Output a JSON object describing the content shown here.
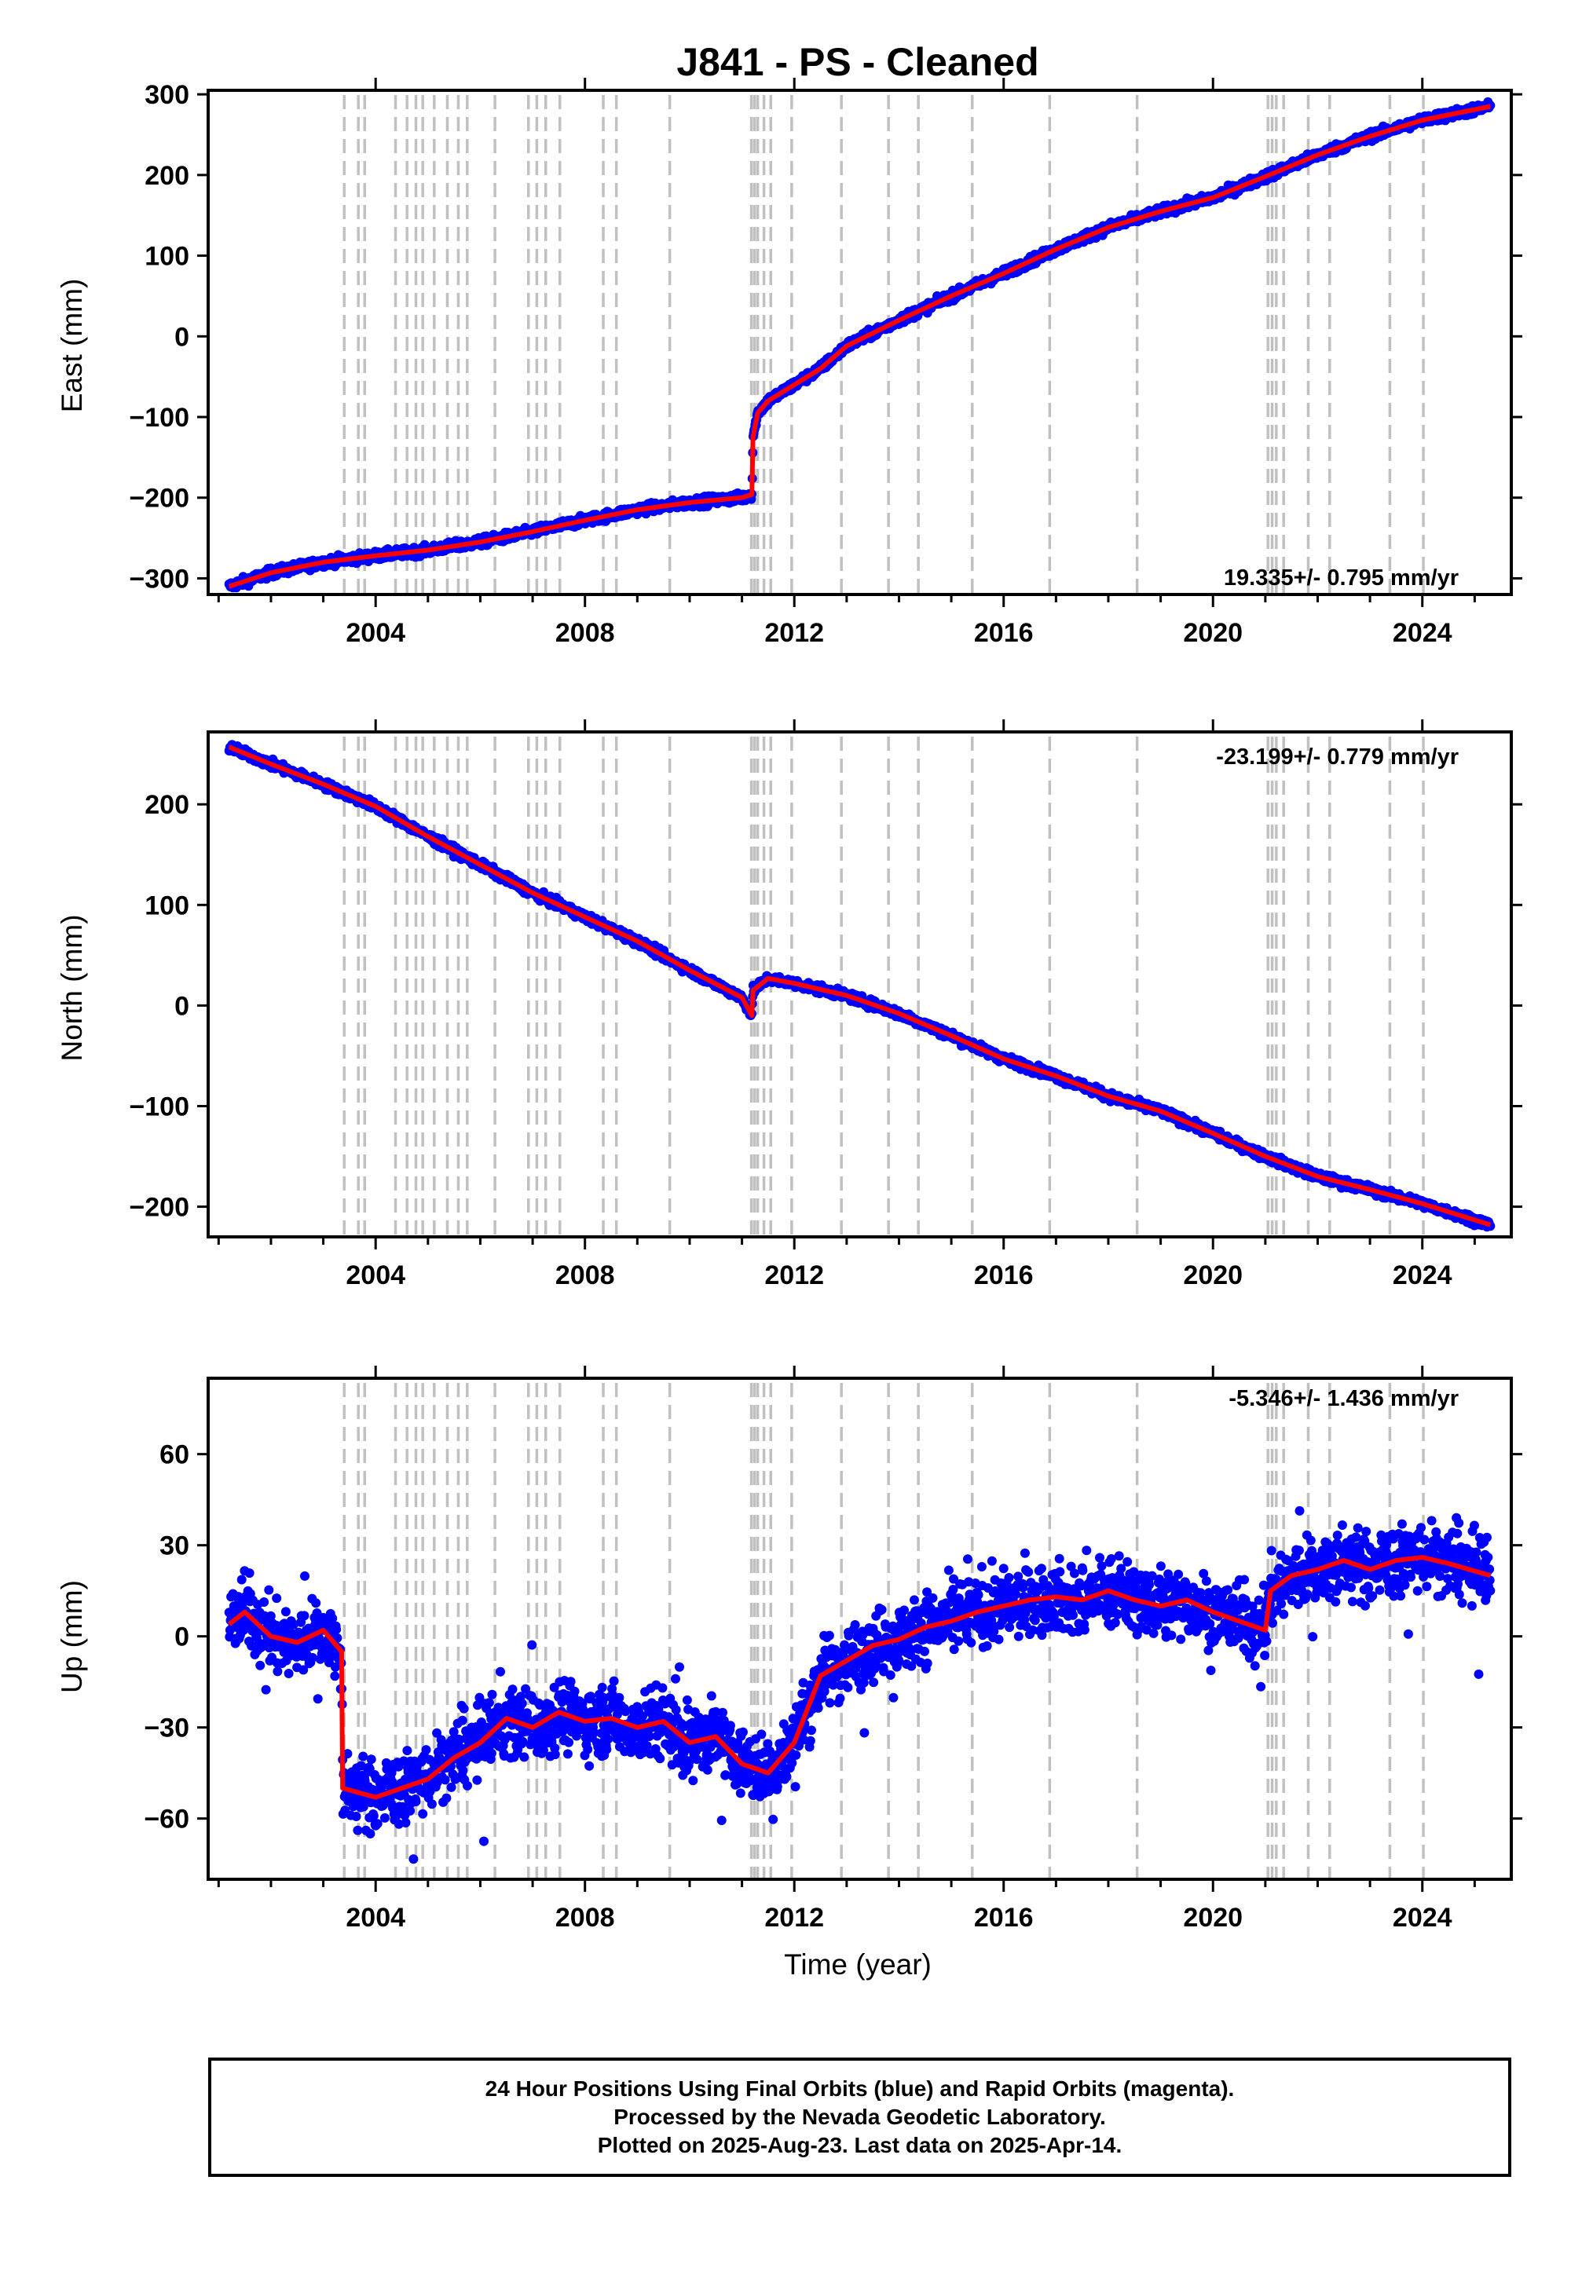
{
  "title": "J841  - PS - Cleaned",
  "footer": {
    "line1": "24 Hour Positions Using Final Orbits (blue) and Rapid Orbits (magenta).",
    "line2": "Processed by the Nevada Geodetic Laboratory.",
    "line3": "Plotted on 2025-Aug-23. Last data on 2025-Apr-14."
  },
  "colors": {
    "data": "#0000ff",
    "model": "#ff0000",
    "events": "#c0c0c0",
    "axes": "#000000"
  },
  "chart_data": [
    {
      "type": "scatter",
      "panel": "east",
      "ylabel": "East (mm)",
      "xlabel": "",
      "rate_label": "19.335+/- 0.795 mm/yr",
      "xlim": [
        2000.8,
        2025.7
      ],
      "ylim": [
        -320,
        305
      ],
      "yticks": [
        -300,
        -200,
        -100,
        0,
        100,
        200,
        300
      ],
      "ytick_labels": [
        "−300",
        "−200",
        "−100",
        "0",
        "100",
        "200",
        "300"
      ],
      "xticks": [
        2004,
        2008,
        2012,
        2016,
        2020,
        2024
      ],
      "xtick_labels": [
        "2004",
        "2008",
        "2012",
        "2016",
        "2020",
        "2024"
      ],
      "scatter_noise": 4,
      "x": [
        2001.2,
        2002.0,
        2003.0,
        2004.0,
        2005.0,
        2006.0,
        2007.0,
        2008.0,
        2009.0,
        2010.0,
        2011.0,
        2011.19,
        2011.21,
        2011.3,
        2011.5,
        2012.0,
        2012.5,
        2013.0,
        2014.0,
        2015.0,
        2016.0,
        2017.0,
        2018.0,
        2019.0,
        2020.0,
        2021.0,
        2022.0,
        2023.0,
        2024.0,
        2025.3
      ],
      "y": [
        -310,
        -293,
        -280,
        -272,
        -265,
        -255,
        -242,
        -228,
        -215,
        -206,
        -200,
        -196,
        -125,
        -95,
        -80,
        -60,
        -40,
        -12,
        20,
        50,
        78,
        108,
        135,
        155,
        172,
        198,
        225,
        248,
        268,
        285
      ]
    },
    {
      "type": "scatter",
      "panel": "north",
      "ylabel": "North (mm)",
      "xlabel": "",
      "rate_label": "-23.199+/- 0.779 mm/yr",
      "xlim": [
        2000.8,
        2025.7
      ],
      "ylim": [
        -230,
        272
      ],
      "yticks": [
        -200,
        -100,
        0,
        100,
        200
      ],
      "ytick_labels": [
        "−200",
        "−100",
        "0",
        "100",
        "200"
      ],
      "xticks": [
        2004,
        2008,
        2012,
        2016,
        2020,
        2024
      ],
      "xtick_labels": [
        "2004",
        "2008",
        "2012",
        "2016",
        "2020",
        "2024"
      ],
      "scatter_noise": 3,
      "x": [
        2001.2,
        2002.0,
        2003.0,
        2004.0,
        2005.0,
        2006.0,
        2007.0,
        2008.0,
        2009.0,
        2010.0,
        2011.0,
        2011.19,
        2011.21,
        2011.5,
        2012.0,
        2013.0,
        2014.0,
        2015.0,
        2016.0,
        2017.0,
        2018.0,
        2019.0,
        2020.0,
        2021.0,
        2022.0,
        2023.0,
        2024.0,
        2025.3
      ],
      "y": [
        257,
        240,
        220,
        198,
        168,
        140,
        112,
        88,
        64,
        35,
        8,
        -10,
        15,
        27,
        22,
        10,
        -8,
        -30,
        -53,
        -70,
        -90,
        -105,
        -127,
        -150,
        -170,
        -183,
        -197,
        -218
      ]
    },
    {
      "type": "scatter",
      "panel": "up",
      "ylabel": "Up (mm)",
      "xlabel": "Time (year)",
      "rate_label": "-5.346+/- 1.436 mm/yr",
      "xlim": [
        2000.8,
        2025.7
      ],
      "ylim": [
        -80,
        85
      ],
      "yticks": [
        -60,
        -30,
        0,
        30,
        60
      ],
      "ytick_labels": [
        "−60",
        "−30",
        "0",
        "30",
        "60"
      ],
      "xticks": [
        2004,
        2008,
        2012,
        2016,
        2020,
        2024
      ],
      "xtick_labels": [
        "2004",
        "2008",
        "2012",
        "2016",
        "2020",
        "2024"
      ],
      "scatter_noise": 8,
      "x": [
        2001.2,
        2001.5,
        2002.0,
        2002.5,
        2003.0,
        2003.35,
        2003.37,
        2004.0,
        2004.5,
        2005.0,
        2005.5,
        2006.0,
        2006.5,
        2007.0,
        2007.5,
        2008.0,
        2008.5,
        2009.0,
        2009.5,
        2010.0,
        2010.5,
        2011.0,
        2011.5,
        2012.0,
        2012.5,
        2013.0,
        2013.5,
        2014.0,
        2014.5,
        2015.0,
        2015.5,
        2016.0,
        2016.5,
        2017.0,
        2017.5,
        2018.0,
        2018.5,
        2019.0,
        2019.5,
        2020.0,
        2020.5,
        2021.0,
        2021.1,
        2021.5,
        2022.0,
        2022.5,
        2023.0,
        2023.5,
        2024.0,
        2024.5,
        2025.3
      ],
      "y": [
        4,
        8,
        0,
        -2,
        2,
        -5,
        -50,
        -53,
        -50,
        -47,
        -40,
        -35,
        -27,
        -30,
        -25,
        -28,
        -27,
        -30,
        -28,
        -35,
        -33,
        -42,
        -45,
        -35,
        -13,
        -8,
        -3,
        -1,
        3,
        5,
        8,
        10,
        12,
        13,
        12,
        15,
        12,
        10,
        12,
        8,
        5,
        2,
        15,
        20,
        22,
        25,
        22,
        25,
        26,
        24,
        20
      ]
    }
  ],
  "events": [
    2003.4,
    2003.67,
    2003.79,
    2004.38,
    2004.6,
    2004.77,
    2004.9,
    2005.12,
    2005.37,
    2005.58,
    2005.75,
    2006.28,
    2006.92,
    2007.08,
    2007.25,
    2007.52,
    2008.35,
    2008.6,
    2009.62,
    2011.18,
    2011.24,
    2011.3,
    2011.42,
    2011.55,
    2011.95,
    2012.9,
    2013.8,
    2014.37,
    2015.4,
    2016.88,
    2018.55,
    2021.05,
    2021.13,
    2021.21,
    2021.35,
    2021.82,
    2022.23,
    2023.38,
    2024.02
  ]
}
